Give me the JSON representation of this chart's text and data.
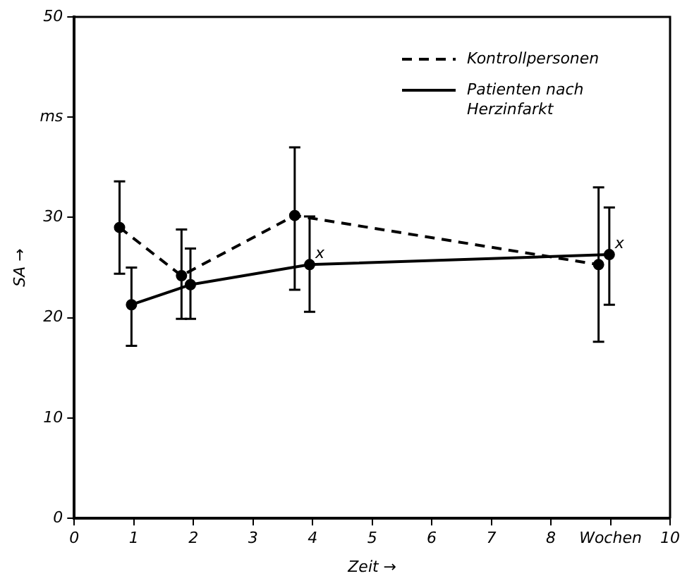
{
  "chart_data": {
    "type": "line",
    "xlabel": "Zeit →",
    "ylabel": "SA →",
    "xlim": [
      0,
      10
    ],
    "xticks": [
      0,
      1,
      2,
      3,
      4,
      5,
      6,
      7,
      8,
      {
        "value": 9,
        "label": "Wochen"
      },
      10
    ],
    "ylim": [
      0,
      50
    ],
    "yticks": [
      0,
      10,
      20,
      30,
      {
        "value": 40,
        "label": "ms"
      },
      50
    ],
    "grid": false,
    "legend": "top right",
    "marker": "circle",
    "series": [
      {
        "name": "Kontrollpersonen",
        "color": "#000000",
        "line_style": "dashed",
        "x": [
          0.76,
          1.8,
          3.7,
          8.8
        ],
        "values": [
          29,
          24.2,
          30.2,
          25.3
        ],
        "errors": [
          [
            24.4,
            33.6
          ],
          [
            19.9,
            28.8
          ],
          [
            22.8,
            37
          ],
          [
            17.6,
            33
          ]
        ]
      },
      {
        "name": "Patienten nach Herzinfarkt",
        "color": "#000000",
        "line_style": "solid",
        "x": [
          0.96,
          1.95,
          3.95,
          8.98
        ],
        "values": [
          21.3,
          23.3,
          25.3,
          26.3
        ],
        "errors": [
          [
            17.2,
            25
          ],
          [
            19.9,
            26.9
          ],
          [
            20.6,
            30.1
          ],
          [
            21.3,
            31
          ]
        ]
      }
    ],
    "annotations": [
      {
        "text": "x",
        "x": 3.95,
        "y": 25.3
      },
      {
        "text": "x",
        "x": 8.98,
        "y": 26.3
      }
    ]
  }
}
